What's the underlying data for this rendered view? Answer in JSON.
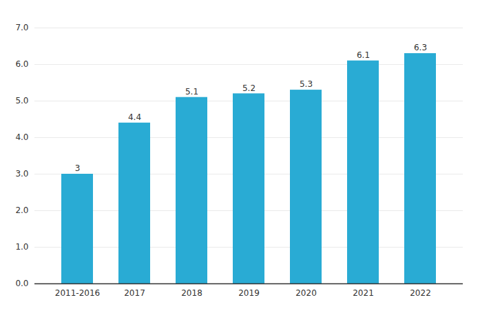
{
  "chart_data": {
    "type": "bar",
    "categories": [
      "2011-2016",
      "2017",
      "2018",
      "2019",
      "2020",
      "2021",
      "2022"
    ],
    "values": [
      3,
      4.4,
      5.1,
      5.2,
      5.3,
      6.1,
      6.3
    ],
    "color": "#29ABD4",
    "ylim": [
      0,
      7
    ],
    "yticks": [
      0,
      1,
      2,
      3,
      4,
      5,
      6,
      7
    ],
    "grid": true,
    "data_labels": true
  }
}
